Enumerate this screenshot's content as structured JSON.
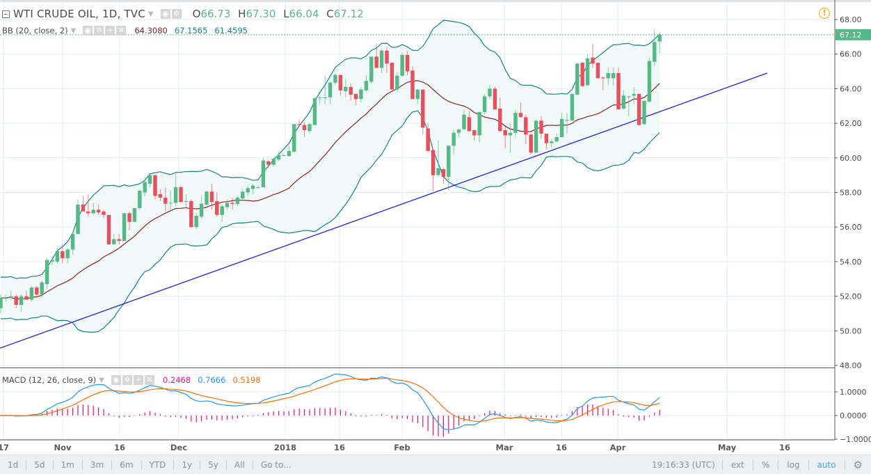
{
  "header": {
    "symbol": "WTI CRUDE OIL, 1D, TVC",
    "ohlc": {
      "o_label": "O",
      "o": "66.73",
      "h_label": "H",
      "h": "67.30",
      "l_label": "L",
      "l": "66.04",
      "c_label": "C",
      "c": "67.12"
    }
  },
  "indicators": {
    "bb": {
      "label": "BB (20, close, 2)",
      "basis": "64.3080",
      "upper": "67.1565",
      "lower": "61.4595"
    },
    "macd": {
      "label": "MACD (12, 26, close, 9)",
      "histogram": "0.2468",
      "macd": "0.7666",
      "signal": "0.5198"
    }
  },
  "price_axis": {
    "ticks": [
      "68.00",
      "66.00",
      "64.00",
      "62.00",
      "60.00",
      "58.00",
      "56.00",
      "54.00",
      "52.00",
      "50.00",
      "48.00"
    ],
    "last_price": "67.12"
  },
  "macd_axis": {
    "ticks": [
      "1.0000",
      "0.0000",
      "−1.0000"
    ]
  },
  "time_axis": {
    "ticks": [
      "17",
      "Nov",
      "16",
      "Dec",
      "2018",
      "16",
      "Feb",
      "Mar",
      "16",
      "Apr",
      "May",
      "16"
    ]
  },
  "bottom_bar": {
    "ranges": [
      "1d",
      "5d",
      "1m",
      "3m",
      "6m",
      "YTD",
      "1y",
      "5y",
      "All",
      "Go to..."
    ],
    "clock": "19:16:33 (UTC)",
    "toggles": [
      "ext",
      "%",
      "log",
      "auto"
    ],
    "settings_icon": "gear-icon"
  },
  "colors": {
    "up": "#53b987",
    "down": "#eb4d5c",
    "bb_band": "#138484",
    "bb_basis": "#872323",
    "bb_fill": "#f1f8f8",
    "trendline": "#1f1fe6",
    "macd": "#2196f3",
    "signal": "#ff6d00",
    "histogram": "#ff0a6c",
    "grid": "#e1ecf2",
    "alert": "#f7a600"
  },
  "chart_data": {
    "type": "candlestick",
    "title": "WTI CRUDE OIL, 1D, TVC",
    "ylim": [
      48,
      68
    ],
    "grid": true,
    "trendline": {
      "from": {
        "date": "2017-10-17",
        "price": 49.0
      },
      "to": {
        "date": "2018-05-09",
        "price": 64.9
      }
    },
    "candles_ohlc": [
      [
        51.3,
        52.1,
        51.0,
        51.9
      ],
      [
        51.9,
        52.1,
        51.7,
        51.9
      ],
      [
        51.9,
        52.3,
        51.8,
        52.0
      ],
      [
        52.0,
        52.1,
        51.3,
        51.5
      ],
      [
        51.5,
        52.1,
        51.1,
        52.0
      ],
      [
        52.0,
        52.3,
        51.8,
        51.8
      ],
      [
        51.8,
        52.6,
        51.7,
        52.5
      ],
      [
        52.5,
        52.6,
        51.9,
        52.1
      ],
      [
        52.1,
        52.9,
        51.9,
        52.8
      ],
      [
        52.7,
        54.2,
        52.4,
        54.1
      ],
      [
        54.0,
        54.3,
        53.8,
        54.1
      ],
      [
        54.0,
        54.8,
        53.9,
        54.6
      ],
      [
        54.6,
        55.0,
        53.9,
        54.2
      ],
      [
        54.2,
        54.8,
        53.9,
        54.7
      ],
      [
        54.7,
        55.7,
        54.4,
        55.6
      ],
      [
        55.6,
        57.6,
        55.6,
        57.3
      ],
      [
        57.3,
        57.8,
        56.9,
        56.9
      ],
      [
        56.9,
        57.9,
        56.6,
        56.8
      ],
      [
        56.8,
        57.4,
        56.7,
        57.0
      ],
      [
        57.0,
        57.3,
        56.7,
        56.85
      ],
      [
        56.9,
        57.0,
        56.5,
        56.7
      ],
      [
        56.7,
        56.7,
        55.0,
        55.0
      ],
      [
        55.0,
        55.6,
        55.0,
        55.3
      ],
      [
        55.3,
        55.6,
        55.0,
        55.2
      ],
      [
        55.2,
        56.8,
        55.2,
        56.8
      ],
      [
        56.8,
        56.9,
        55.8,
        56.3
      ],
      [
        56.3,
        57.1,
        56.3,
        57.1
      ],
      [
        57.1,
        58.2,
        57.0,
        58.1
      ],
      [
        58.0,
        58.9,
        57.8,
        58.6
      ],
      [
        58.5,
        59.0,
        58.3,
        59.0
      ],
      [
        59.0,
        59.0,
        57.6,
        57.8
      ],
      [
        57.9,
        58.2,
        57.5,
        57.7
      ],
      [
        57.7,
        58.3,
        56.9,
        57.35
      ],
      [
        57.4,
        58.1,
        57.0,
        57.4
      ],
      [
        57.4,
        59.1,
        57.2,
        58.3
      ],
      [
        58.3,
        58.4,
        57.4,
        57.45
      ],
      [
        57.5,
        57.9,
        57.1,
        57.5
      ],
      [
        57.5,
        57.6,
        56.0,
        56.0
      ],
      [
        56.0,
        56.8,
        55.9,
        56.65
      ],
      [
        56.6,
        57.8,
        56.5,
        57.35
      ],
      [
        57.3,
        58.1,
        57.2,
        58.05
      ],
      [
        58.05,
        58.5,
        57.0,
        57.45
      ],
      [
        57.5,
        58.0,
        56.6,
        56.7
      ],
      [
        56.7,
        57.3,
        56.3,
        57.2
      ],
      [
        57.15,
        57.6,
        57.0,
        57.4
      ],
      [
        57.4,
        57.7,
        57.0,
        57.33
      ],
      [
        57.33,
        57.8,
        57.2,
        57.7
      ],
      [
        57.65,
        58.2,
        57.6,
        58.05
      ],
      [
        58.0,
        58.4,
        57.8,
        58.25
      ],
      [
        58.2,
        58.5,
        57.9,
        58.4
      ],
      [
        58.3,
        58.4,
        58.2,
        58.3
      ],
      [
        58.3,
        60.0,
        58.3,
        59.85
      ],
      [
        59.8,
        59.9,
        59.4,
        59.6
      ],
      [
        59.6,
        60.0,
        59.5,
        59.95
      ],
      [
        59.9,
        60.4,
        59.8,
        60.15
      ],
      [
        60.15,
        60.2,
        60.1,
        60.15
      ],
      [
        60.1,
        60.7,
        60.1,
        60.4
      ],
      [
        60.35,
        61.95,
        60.3,
        61.95
      ],
      [
        61.95,
        62.2,
        61.8,
        61.9
      ],
      [
        61.9,
        62.05,
        61.2,
        61.6
      ],
      [
        61.55,
        62.0,
        61.4,
        61.95
      ],
      [
        61.9,
        63.5,
        61.9,
        63.45
      ],
      [
        63.5,
        63.6,
        63.1,
        63.5
      ],
      [
        63.45,
        64.75,
        63.1,
        63.5
      ],
      [
        63.5,
        64.4,
        63.1,
        64.35
      ],
      [
        64.35,
        64.9,
        64.2,
        64.8
      ],
      [
        64.8,
        64.8,
        63.6,
        63.9
      ],
      [
        63.85,
        64.6,
        63.5,
        64.1
      ],
      [
        64.1,
        64.3,
        63.3,
        63.65
      ],
      [
        63.7,
        63.7,
        63.05,
        63.4
      ],
      [
        63.4,
        64.1,
        63.2,
        63.95
      ],
      [
        63.9,
        64.8,
        63.8,
        64.45
      ],
      [
        64.4,
        65.85,
        64.3,
        65.85
      ],
      [
        65.85,
        66.6,
        65.2,
        65.2
      ],
      [
        65.2,
        66.3,
        64.9,
        66.2
      ],
      [
        66.2,
        66.4,
        64.9,
        65.45
      ],
      [
        65.5,
        65.5,
        63.95,
        63.95
      ],
      [
        63.95,
        64.95,
        63.8,
        64.75
      ],
      [
        64.75,
        66.1,
        64.7,
        65.95
      ],
      [
        65.95,
        66.2,
        64.75,
        65.0
      ],
      [
        65.05,
        65.3,
        63.4,
        63.4
      ],
      [
        63.4,
        63.95,
        63.1,
        63.95
      ],
      [
        63.95,
        63.95,
        61.35,
        61.75
      ],
      [
        61.7,
        62.0,
        60.35,
        60.4
      ],
      [
        60.45,
        60.45,
        58.1,
        59.0
      ],
      [
        59.0,
        61.0,
        58.9,
        59.4
      ],
      [
        59.35,
        59.4,
        58.5,
        58.9
      ],
      [
        58.9,
        60.7,
        58.1,
        60.7
      ],
      [
        60.7,
        61.6,
        60.2,
        61.45
      ],
      [
        61.45,
        61.65,
        61.2,
        61.65
      ],
      [
        61.65,
        62.8,
        61.65,
        62.5
      ],
      [
        62.35,
        62.7,
        61.5,
        61.55
      ],
      [
        61.6,
        61.6,
        61.0,
        61.3
      ],
      [
        61.3,
        62.65,
        60.9,
        62.65
      ],
      [
        62.65,
        63.7,
        62.5,
        63.55
      ],
      [
        63.55,
        64.2,
        63.4,
        64.0
      ],
      [
        64.0,
        64.1,
        62.8,
        62.8
      ],
      [
        62.85,
        63.5,
        61.5,
        61.55
      ],
      [
        61.6,
        61.8,
        60.55,
        61.3
      ],
      [
        61.3,
        62.0,
        60.3,
        61.45
      ],
      [
        61.45,
        62.8,
        61.2,
        62.6
      ],
      [
        62.6,
        63.2,
        62.35,
        62.35
      ],
      [
        62.35,
        62.5,
        60.8,
        61.35
      ],
      [
        61.35,
        61.4,
        60.2,
        60.3
      ],
      [
        60.3,
        62.2,
        60.3,
        62.15
      ],
      [
        62.15,
        62.4,
        61.1,
        61.4
      ],
      [
        61.4,
        61.4,
        60.5,
        60.85
      ],
      [
        60.85,
        61.1,
        60.6,
        60.95
      ],
      [
        60.95,
        61.4,
        60.9,
        61.2
      ],
      [
        61.2,
        62.6,
        61.2,
        62.25
      ],
      [
        62.15,
        62.6,
        61.4,
        62.2
      ],
      [
        62.15,
        63.7,
        62.15,
        63.7
      ],
      [
        63.65,
        65.5,
        63.65,
        65.45
      ],
      [
        65.5,
        65.5,
        64.1,
        64.15
      ],
      [
        64.2,
        66.0,
        64.2,
        65.75
      ],
      [
        65.8,
        66.6,
        65.2,
        65.45
      ],
      [
        65.5,
        65.5,
        64.6,
        64.6
      ],
      [
        64.65,
        64.7,
        63.9,
        64.6
      ],
      [
        64.6,
        65.2,
        64.2,
        64.9
      ],
      [
        64.6,
        65.2,
        64.2,
        64.9
      ],
      [
        64.9,
        65.2,
        62.8,
        62.8
      ],
      [
        62.85,
        63.9,
        62.8,
        63.6
      ],
      [
        63.55,
        63.6,
        62.4,
        63.55
      ],
      [
        63.6,
        64.1,
        63.1,
        63.7
      ],
      [
        63.7,
        63.7,
        61.85,
        61.9
      ],
      [
        61.95,
        63.3,
        61.9,
        63.3
      ],
      [
        63.25,
        65.8,
        63.2,
        65.6
      ],
      [
        65.55,
        67.4,
        65.3,
        66.7
      ],
      [
        66.73,
        67.3,
        66.04,
        67.12
      ]
    ],
    "macd_ylim": [
      -1,
      1
    ]
  }
}
